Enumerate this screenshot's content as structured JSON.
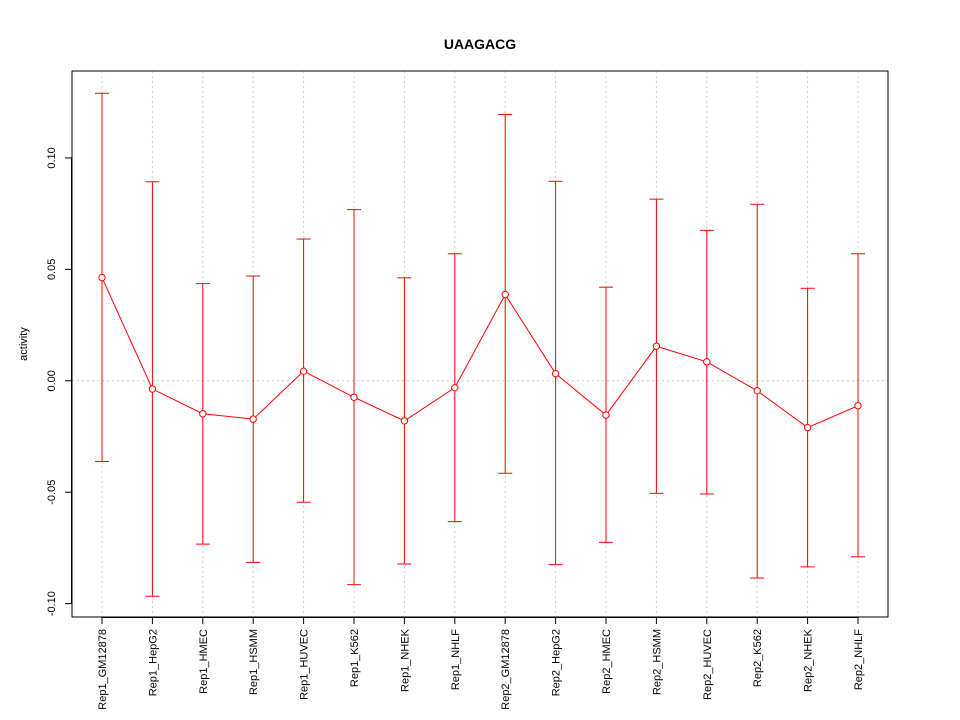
{
  "chart_data": {
    "type": "line",
    "title": "UAAGACG",
    "xlabel": "",
    "ylabel": "activity",
    "ylim": [
      -0.106,
      0.139
    ],
    "yticks": [
      -0.1,
      -0.05,
      0.0,
      0.05,
      0.1
    ],
    "ytick_labels": [
      "-0.10",
      "-0.05",
      "0.00",
      "0.05",
      "0.10"
    ],
    "grid": true,
    "reference_line": 0,
    "categories": [
      "Rep1_GM12878",
      "Rep1_HepG2",
      "Rep1_HMEC",
      "Rep1_HSMM",
      "Rep1_HUVEC",
      "Rep1_K562",
      "Rep1_NHEK",
      "Rep1_NHLF",
      "Rep2_GM12878",
      "Rep2_HepG2",
      "Rep2_HMEC",
      "Rep2_HSMM",
      "Rep2_HUVEC",
      "Rep2_K562",
      "Rep2_NHEK",
      "Rep2_NHLF"
    ],
    "series": [
      {
        "color": "#ff0000",
        "values": [
          0.0463,
          -0.0037,
          -0.0148,
          -0.0172,
          0.0043,
          -0.0074,
          -0.018,
          -0.0031,
          0.0387,
          0.0032,
          -0.0154,
          0.0155,
          0.0085,
          -0.0045,
          -0.021,
          -0.0112
        ],
        "upper": [
          0.129,
          0.0893,
          0.0436,
          0.047,
          0.0636,
          0.0768,
          0.0462,
          0.057,
          0.1195,
          0.0895,
          0.042,
          0.0815,
          0.0675,
          0.0792,
          0.0415,
          0.057
        ],
        "lower": [
          -0.0362,
          -0.0967,
          -0.0733,
          -0.0815,
          -0.0545,
          -0.0915,
          -0.0822,
          -0.0632,
          -0.0415,
          -0.0825,
          -0.0725,
          -0.0505,
          -0.0508,
          -0.0885,
          -0.0835,
          -0.079
        ]
      }
    ]
  }
}
